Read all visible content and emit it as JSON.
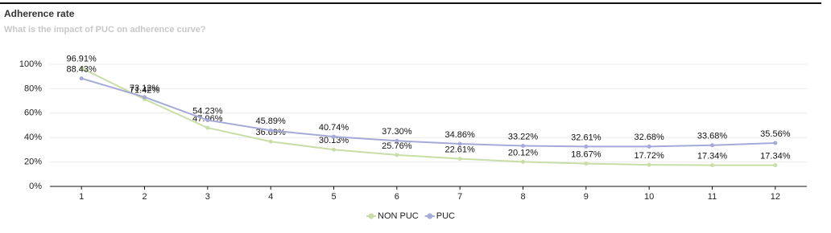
{
  "chart_data": {
    "type": "line",
    "title": "Adherence rate",
    "subtitle": "What is the impact of PUC on adherence curve?",
    "categories": [
      "1",
      "2",
      "3",
      "4",
      "5",
      "6",
      "7",
      "8",
      "9",
      "10",
      "11",
      "12"
    ],
    "series": [
      {
        "name": "NON PUC",
        "color": "#c9dda6",
        "values": [
          96.91,
          71.42,
          47.96,
          36.69,
          30.13,
          25.76,
          22.61,
          20.12,
          18.67,
          17.72,
          17.34,
          17.34
        ],
        "value_labels": [
          "96.91%",
          "71.42%",
          "47.96%",
          "36.69%",
          "30.13%",
          "25.76%",
          "22.61%",
          "20.12%",
          "18.67%",
          "17.72%",
          "17.34%",
          "17.34%"
        ]
      },
      {
        "name": "PUC",
        "color": "#a5aad8",
        "values": [
          88.43,
          73.12,
          54.23,
          45.89,
          40.74,
          37.3,
          34.86,
          33.22,
          32.61,
          32.68,
          33.68,
          35.56
        ],
        "value_labels": [
          "88.43%",
          "73.12%",
          "54.23%",
          "45.89%",
          "40.74%",
          "37.30%",
          "34.86%",
          "33.22%",
          "32.61%",
          "32.68%",
          "33.68%",
          "35.56%"
        ]
      }
    ],
    "ylim": [
      0,
      100
    ],
    "yticks": [
      {
        "value": 0,
        "label": "0%"
      },
      {
        "value": 20,
        "label": "20%"
      },
      {
        "value": 40,
        "label": "40%"
      },
      {
        "value": 60,
        "label": "60%"
      },
      {
        "value": 80,
        "label": "80%"
      },
      {
        "value": 100,
        "label": "100%"
      }
    ],
    "grid": true,
    "legend": "bottom"
  }
}
